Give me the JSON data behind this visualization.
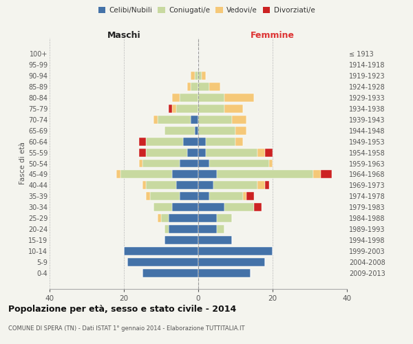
{
  "age_groups": [
    "0-4",
    "5-9",
    "10-14",
    "15-19",
    "20-24",
    "25-29",
    "30-34",
    "35-39",
    "40-44",
    "45-49",
    "50-54",
    "55-59",
    "60-64",
    "65-69",
    "70-74",
    "75-79",
    "80-84",
    "85-89",
    "90-94",
    "95-99",
    "100+"
  ],
  "birth_years": [
    "2009-2013",
    "2004-2008",
    "1999-2003",
    "1994-1998",
    "1989-1993",
    "1984-1988",
    "1979-1983",
    "1974-1978",
    "1969-1973",
    "1964-1968",
    "1959-1963",
    "1954-1958",
    "1949-1953",
    "1944-1948",
    "1939-1943",
    "1934-1938",
    "1929-1933",
    "1924-1928",
    "1919-1923",
    "1914-1918",
    "≤ 1913"
  ],
  "maschi": {
    "celibi": [
      15,
      19,
      20,
      9,
      8,
      8,
      7,
      5,
      6,
      7,
      5,
      3,
      4,
      1,
      2,
      0,
      0,
      0,
      0,
      0,
      0
    ],
    "coniugati": [
      0,
      0,
      0,
      0,
      1,
      2,
      5,
      8,
      8,
      14,
      10,
      11,
      10,
      8,
      9,
      6,
      5,
      2,
      1,
      0,
      0
    ],
    "vedovi": [
      0,
      0,
      0,
      0,
      0,
      1,
      0,
      1,
      1,
      1,
      1,
      0,
      0,
      0,
      1,
      1,
      2,
      1,
      1,
      0,
      0
    ],
    "divorziati": [
      0,
      0,
      0,
      0,
      0,
      0,
      0,
      0,
      0,
      0,
      0,
      2,
      2,
      0,
      0,
      1,
      0,
      0,
      0,
      0,
      0
    ]
  },
  "femmine": {
    "nubili": [
      14,
      18,
      20,
      9,
      5,
      5,
      7,
      3,
      4,
      5,
      3,
      2,
      2,
      0,
      0,
      0,
      0,
      0,
      0,
      0,
      0
    ],
    "coniugate": [
      0,
      0,
      0,
      0,
      2,
      4,
      8,
      9,
      12,
      26,
      16,
      14,
      8,
      10,
      9,
      7,
      7,
      3,
      1,
      0,
      0
    ],
    "vedove": [
      0,
      0,
      0,
      0,
      0,
      0,
      0,
      1,
      2,
      2,
      1,
      2,
      2,
      3,
      4,
      5,
      8,
      3,
      1,
      0,
      0
    ],
    "divorziate": [
      0,
      0,
      0,
      0,
      0,
      0,
      2,
      2,
      1,
      3,
      0,
      2,
      0,
      0,
      0,
      0,
      0,
      0,
      0,
      0,
      0
    ]
  },
  "colors": {
    "celibi": "#4472a8",
    "coniugati": "#c8d9a0",
    "vedovi": "#f5c878",
    "divorziati": "#cc2222"
  },
  "xlim": 40,
  "title": "Popolazione per età, sesso e stato civile - 2014",
  "subtitle": "COMUNE DI SPERA (TN) - Dati ISTAT 1° gennaio 2014 - Elaborazione TUTTITALIA.IT",
  "ylabel_left": "Fasce di età",
  "xlabel_maschi": "Maschi",
  "xlabel_femmine": "Femmine",
  "legend_labels": [
    "Celibi/Nubili",
    "Coniugati/e",
    "Vedovi/e",
    "Divorziati/e"
  ],
  "bg_color": "#f4f4ee"
}
